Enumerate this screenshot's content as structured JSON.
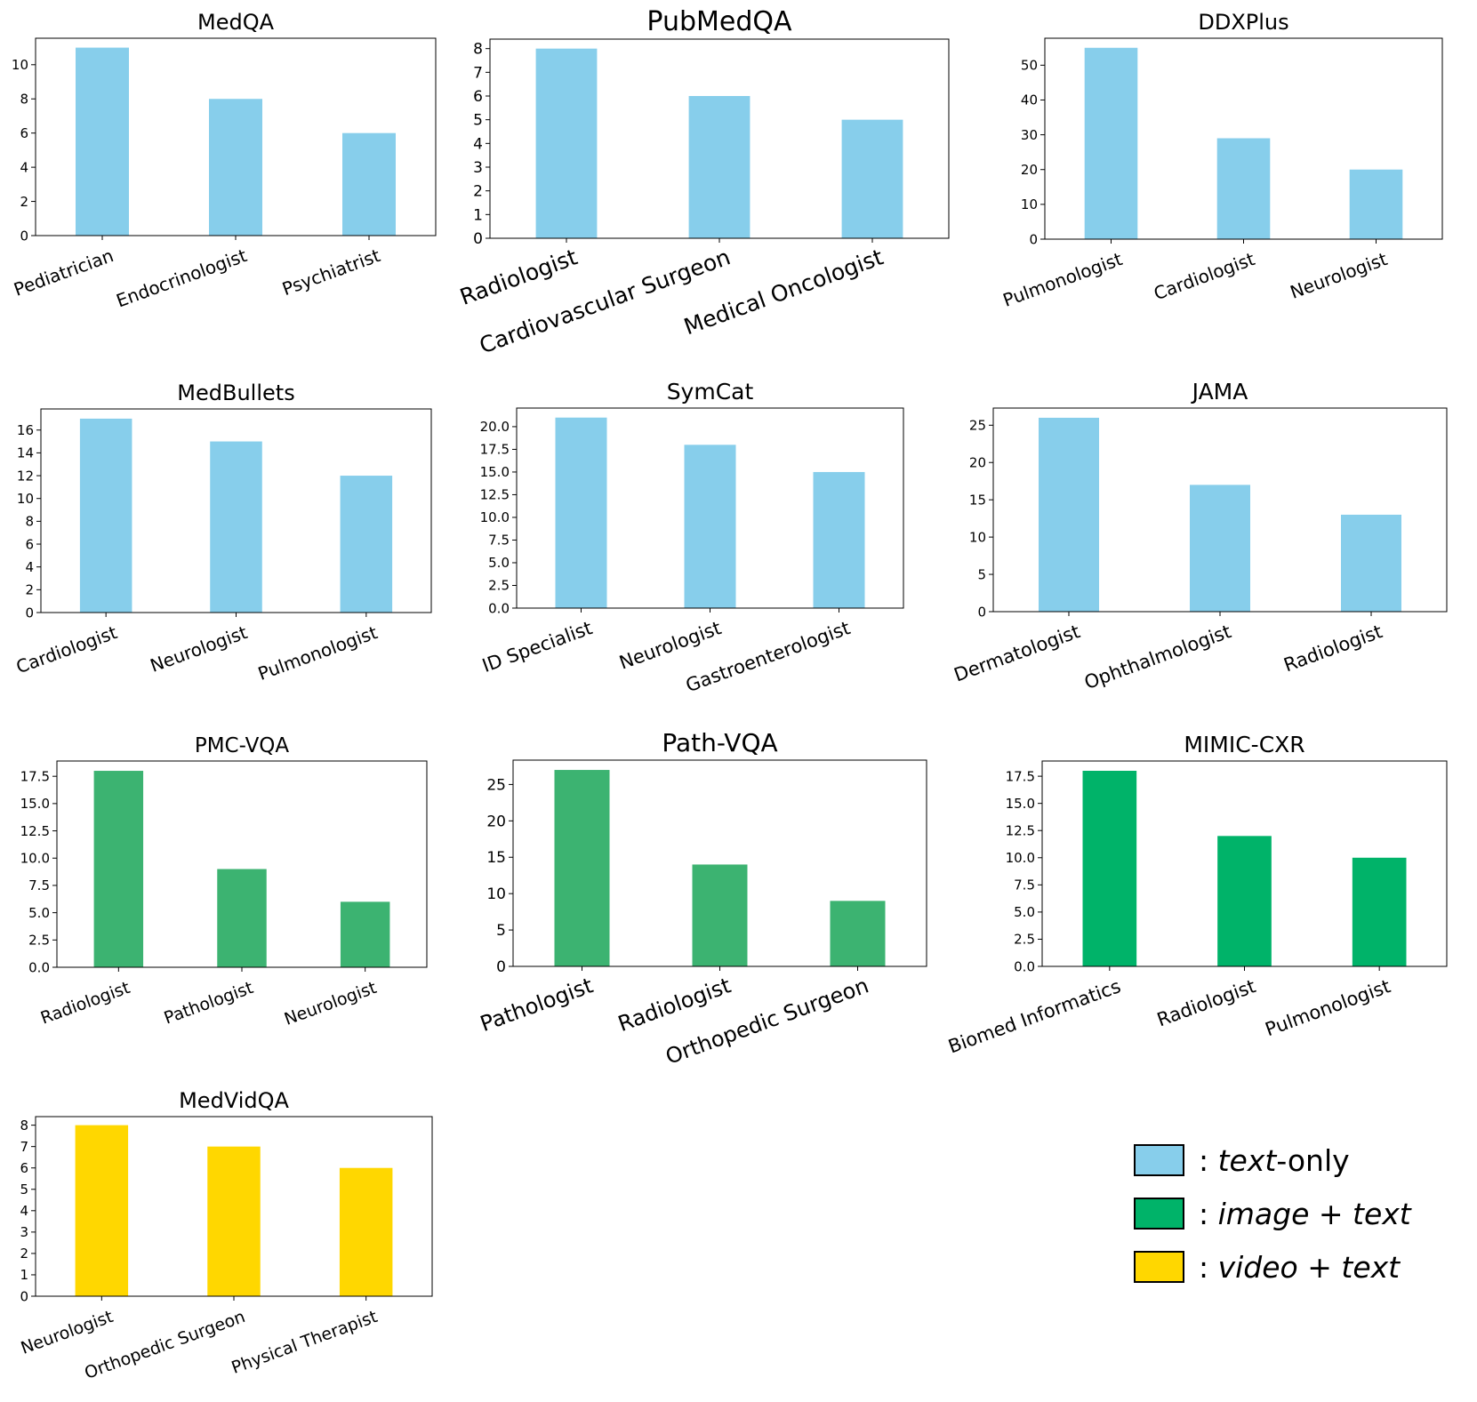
{
  "colors": {
    "text_only": "#87CEEB",
    "image_text_pmc": "#3CB371",
    "image_text_mimic": "#00B369",
    "video_text": "#FFD700"
  },
  "legend": [
    {
      "sep": ": ",
      "a": "text",
      "b": "-only",
      "color": "#87CEEB",
      "italic_a": true,
      "italic_b": false
    },
    {
      "sep": ": ",
      "a": "image + text",
      "b": "",
      "color": "#00B369",
      "italic_a": true,
      "italic_b": false
    },
    {
      "sep": ": ",
      "a": "video + text",
      "b": "",
      "color": "#FFD700",
      "italic_a": true,
      "italic_b": false
    }
  ],
  "chart_data": [
    {
      "type": "bar",
      "title": "MedQA",
      "categories": [
        "Pediatrician",
        "Endocrinologist",
        "Psychiatrist"
      ],
      "values": [
        11,
        8,
        6
      ],
      "ylim": [
        0,
        11.55
      ],
      "yticks": [
        "0",
        "2",
        "4",
        "6",
        "8",
        "10"
      ],
      "ytick_values": [
        0,
        2,
        4,
        6,
        8,
        10
      ],
      "color": "#87CEEB"
    },
    {
      "type": "bar",
      "title": "PubMedQA",
      "categories": [
        "Radiologist",
        "Cardiovascular Surgeon",
        "Medical Oncologist"
      ],
      "values": [
        8,
        6,
        5
      ],
      "ylim": [
        0,
        8.4
      ],
      "yticks": [
        "0",
        "1",
        "2",
        "3",
        "4",
        "5",
        "6",
        "7",
        "8"
      ],
      "ytick_values": [
        0,
        1,
        2,
        3,
        4,
        5,
        6,
        7,
        8
      ],
      "color": "#87CEEB"
    },
    {
      "type": "bar",
      "title": "DDXPlus",
      "categories": [
        "Pulmonologist",
        "Cardiologist",
        "Neurologist"
      ],
      "values": [
        55,
        29,
        20
      ],
      "ylim": [
        0,
        57.75
      ],
      "yticks": [
        "0",
        "10",
        "20",
        "30",
        "40",
        "50"
      ],
      "ytick_values": [
        0,
        10,
        20,
        30,
        40,
        50
      ],
      "color": "#87CEEB"
    },
    {
      "type": "bar",
      "title": "MedBullets",
      "categories": [
        "Cardiologist",
        "Neurologist",
        "Pulmonologist"
      ],
      "values": [
        17,
        15,
        12
      ],
      "ylim": [
        0,
        17.85
      ],
      "yticks": [
        "0",
        "2",
        "4",
        "6",
        "8",
        "10",
        "12",
        "14",
        "16"
      ],
      "ytick_values": [
        0,
        2,
        4,
        6,
        8,
        10,
        12,
        14,
        16
      ],
      "color": "#87CEEB"
    },
    {
      "type": "bar",
      "title": "SymCat",
      "categories": [
        "ID Specialist",
        "Neurologist",
        "Gastroenterologist"
      ],
      "values": [
        21,
        18,
        15
      ],
      "ylim": [
        0,
        22.05
      ],
      "yticks": [
        "0.0",
        "2.5",
        "5.0",
        "7.5",
        "10.0",
        "12.5",
        "15.0",
        "17.5",
        "20.0"
      ],
      "ytick_values": [
        0,
        2.5,
        5,
        7.5,
        10,
        12.5,
        15,
        17.5,
        20
      ],
      "color": "#87CEEB"
    },
    {
      "type": "bar",
      "title": "JAMA",
      "categories": [
        "Dermatologist",
        "Ophthalmologist",
        "Radiologist"
      ],
      "values": [
        26,
        17,
        13
      ],
      "ylim": [
        0,
        27.3
      ],
      "yticks": [
        "0",
        "5",
        "10",
        "15",
        "20",
        "25"
      ],
      "ytick_values": [
        0,
        5,
        10,
        15,
        20,
        25
      ],
      "color": "#87CEEB"
    },
    {
      "type": "bar",
      "title": "PMC-VQA",
      "categories": [
        "Radiologist",
        "Pathologist",
        "Neurologist"
      ],
      "values": [
        18,
        9,
        6
      ],
      "ylim": [
        0,
        18.9
      ],
      "yticks": [
        "0.0",
        "2.5",
        "5.0",
        "7.5",
        "10.0",
        "12.5",
        "15.0",
        "17.5"
      ],
      "ytick_values": [
        0,
        2.5,
        5,
        7.5,
        10,
        12.5,
        15,
        17.5
      ],
      "color": "#3CB371"
    },
    {
      "type": "bar",
      "title": "Path-VQA",
      "categories": [
        "Pathologist",
        "Radiologist",
        "Orthopedic Surgeon"
      ],
      "values": [
        27,
        14,
        9
      ],
      "ylim": [
        0,
        28.35
      ],
      "yticks": [
        "0",
        "5",
        "10",
        "15",
        "20",
        "25"
      ],
      "ytick_values": [
        0,
        5,
        10,
        15,
        20,
        25
      ],
      "color": "#3CB371"
    },
    {
      "type": "bar",
      "title": "MIMIC-CXR",
      "categories": [
        "Biomed Informatics",
        "Radiologist",
        "Pulmonologist"
      ],
      "values": [
        18,
        12,
        10
      ],
      "ylim": [
        0,
        18.9
      ],
      "yticks": [
        "0.0",
        "2.5",
        "5.0",
        "7.5",
        "10.0",
        "12.5",
        "15.0",
        "17.5"
      ],
      "ytick_values": [
        0,
        2.5,
        5,
        7.5,
        10,
        12.5,
        15,
        17.5
      ],
      "color": "#00B369"
    },
    {
      "type": "bar",
      "title": "MedVidQA",
      "categories": [
        "Neurologist",
        "Orthopedic Surgeon",
        "Physical Therapist"
      ],
      "values": [
        8,
        7,
        6
      ],
      "ylim": [
        0,
        8.4
      ],
      "yticks": [
        "0",
        "1",
        "2",
        "3",
        "4",
        "5",
        "6",
        "7",
        "8"
      ],
      "ytick_values": [
        0,
        1,
        2,
        3,
        4,
        5,
        6,
        7,
        8
      ],
      "color": "#FFD700"
    }
  ]
}
